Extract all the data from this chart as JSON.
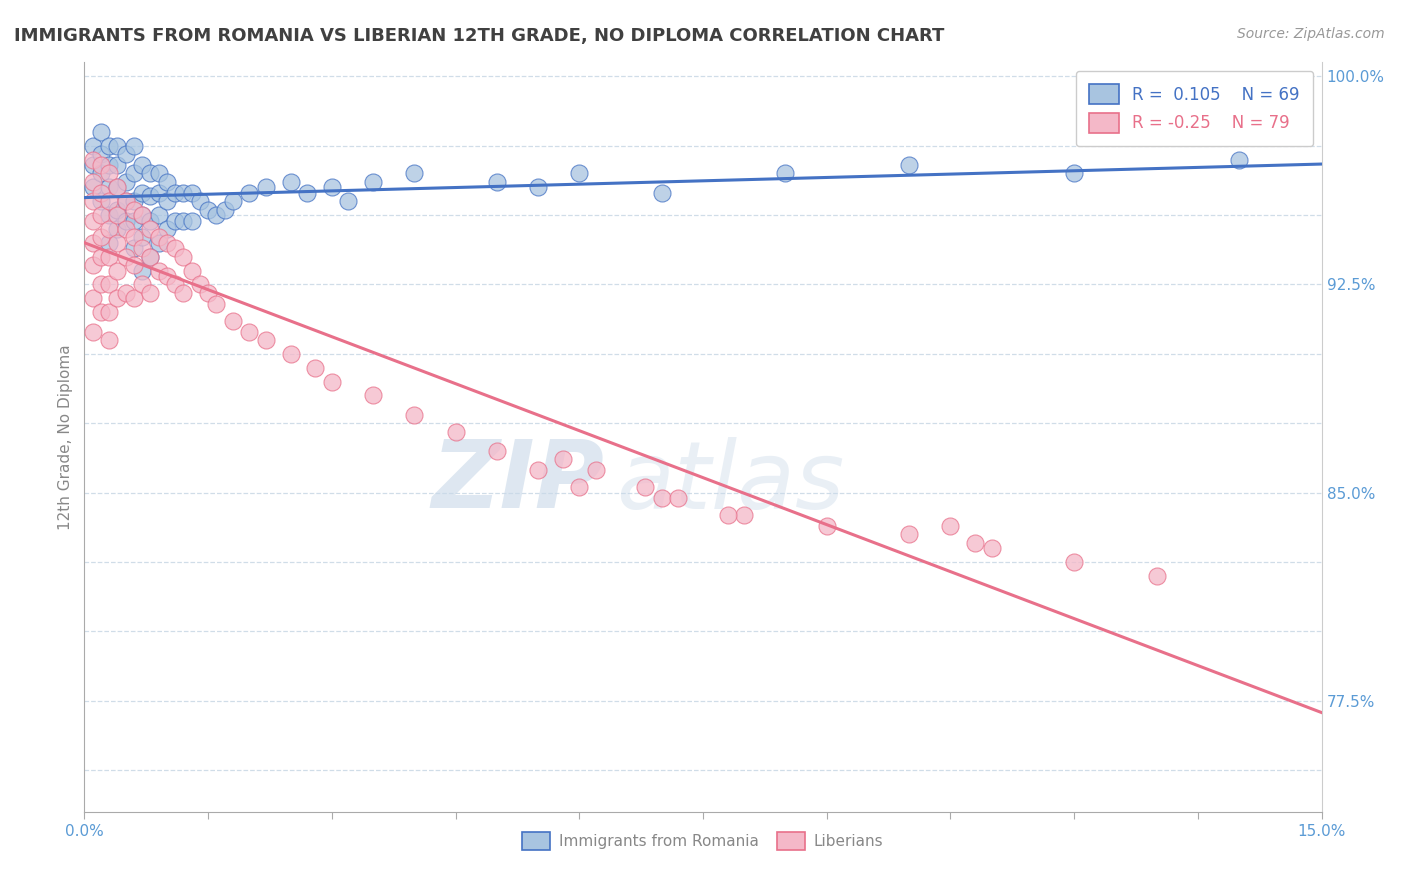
{
  "title": "IMMIGRANTS FROM ROMANIA VS LIBERIAN 12TH GRADE, NO DIPLOMA CORRELATION CHART",
  "source": "Source: ZipAtlas.com",
  "ylabel": "12th Grade, No Diploma",
  "xlim": [
    0.0,
    0.15
  ],
  "ylim": [
    0.735,
    1.005
  ],
  "xticks": [
    0.0,
    0.015,
    0.03,
    0.045,
    0.06,
    0.075,
    0.09,
    0.105,
    0.12,
    0.135,
    0.15
  ],
  "ytick_positions": [
    0.75,
    0.775,
    0.8,
    0.825,
    0.85,
    0.875,
    0.9,
    0.925,
    0.95,
    0.975,
    1.0
  ],
  "ytick_labels": [
    "",
    "77.5%",
    "",
    "",
    "85.0%",
    "",
    "",
    "92.5%",
    "",
    "",
    "100.0%"
  ],
  "romania_color": "#a8c4e0",
  "liberia_color": "#f4b8c8",
  "romania_R": 0.105,
  "romania_N": 69,
  "liberia_R": -0.25,
  "liberia_N": 79,
  "romania_line_color": "#4472c4",
  "liberia_line_color": "#e8708a",
  "watermark_zip": "ZIP",
  "watermark_atlas": "atlas",
  "legend_label_romania": "Immigrants from Romania",
  "legend_label_liberia": "Liberians",
  "background_color": "#ffffff",
  "grid_color": "#d0dde8",
  "title_color": "#404040",
  "axis_label_color": "#5b9bd5",
  "romania_scatter_x": [
    0.001,
    0.001,
    0.001,
    0.002,
    0.002,
    0.002,
    0.002,
    0.003,
    0.003,
    0.003,
    0.003,
    0.003,
    0.004,
    0.004,
    0.004,
    0.004,
    0.004,
    0.005,
    0.005,
    0.005,
    0.005,
    0.006,
    0.006,
    0.006,
    0.006,
    0.006,
    0.007,
    0.007,
    0.007,
    0.007,
    0.007,
    0.008,
    0.008,
    0.008,
    0.008,
    0.009,
    0.009,
    0.009,
    0.009,
    0.01,
    0.01,
    0.01,
    0.011,
    0.011,
    0.012,
    0.012,
    0.013,
    0.013,
    0.014,
    0.015,
    0.016,
    0.017,
    0.018,
    0.02,
    0.022,
    0.025,
    0.027,
    0.03,
    0.032,
    0.035,
    0.04,
    0.05,
    0.055,
    0.06,
    0.07,
    0.085,
    0.1,
    0.12,
    0.14
  ],
  "romania_scatter_y": [
    0.975,
    0.968,
    0.96,
    0.98,
    0.972,
    0.965,
    0.955,
    0.975,
    0.968,
    0.96,
    0.95,
    0.94,
    0.975,
    0.968,
    0.96,
    0.952,
    0.945,
    0.972,
    0.962,
    0.955,
    0.948,
    0.975,
    0.965,
    0.955,
    0.948,
    0.938,
    0.968,
    0.958,
    0.95,
    0.942,
    0.93,
    0.965,
    0.957,
    0.948,
    0.935,
    0.965,
    0.958,
    0.95,
    0.94,
    0.962,
    0.955,
    0.945,
    0.958,
    0.948,
    0.958,
    0.948,
    0.958,
    0.948,
    0.955,
    0.952,
    0.95,
    0.952,
    0.955,
    0.958,
    0.96,
    0.962,
    0.958,
    0.96,
    0.955,
    0.962,
    0.965,
    0.962,
    0.96,
    0.965,
    0.958,
    0.965,
    0.968,
    0.965,
    0.97
  ],
  "liberia_scatter_x": [
    0.001,
    0.001,
    0.001,
    0.001,
    0.001,
    0.001,
    0.001,
    0.001,
    0.002,
    0.002,
    0.002,
    0.002,
    0.002,
    0.002,
    0.002,
    0.003,
    0.003,
    0.003,
    0.003,
    0.003,
    0.003,
    0.003,
    0.004,
    0.004,
    0.004,
    0.004,
    0.004,
    0.005,
    0.005,
    0.005,
    0.005,
    0.006,
    0.006,
    0.006,
    0.006,
    0.007,
    0.007,
    0.007,
    0.008,
    0.008,
    0.008,
    0.009,
    0.009,
    0.01,
    0.01,
    0.011,
    0.011,
    0.012,
    0.012,
    0.013,
    0.014,
    0.015,
    0.016,
    0.018,
    0.02,
    0.022,
    0.025,
    0.028,
    0.03,
    0.035,
    0.04,
    0.045,
    0.05,
    0.055,
    0.06,
    0.07,
    0.08,
    0.09,
    0.1,
    0.11,
    0.12,
    0.13,
    0.058,
    0.062,
    0.068,
    0.072,
    0.078,
    0.105,
    0.108
  ],
  "liberia_scatter_y": [
    0.97,
    0.962,
    0.955,
    0.948,
    0.94,
    0.932,
    0.92,
    0.908,
    0.968,
    0.958,
    0.95,
    0.942,
    0.935,
    0.925,
    0.915,
    0.965,
    0.955,
    0.945,
    0.935,
    0.925,
    0.915,
    0.905,
    0.96,
    0.95,
    0.94,
    0.93,
    0.92,
    0.955,
    0.945,
    0.935,
    0.922,
    0.952,
    0.942,
    0.932,
    0.92,
    0.95,
    0.938,
    0.925,
    0.945,
    0.935,
    0.922,
    0.942,
    0.93,
    0.94,
    0.928,
    0.938,
    0.925,
    0.935,
    0.922,
    0.93,
    0.925,
    0.922,
    0.918,
    0.912,
    0.908,
    0.905,
    0.9,
    0.895,
    0.89,
    0.885,
    0.878,
    0.872,
    0.865,
    0.858,
    0.852,
    0.848,
    0.842,
    0.838,
    0.835,
    0.83,
    0.825,
    0.82,
    0.862,
    0.858,
    0.852,
    0.848,
    0.842,
    0.838,
    0.832
  ]
}
